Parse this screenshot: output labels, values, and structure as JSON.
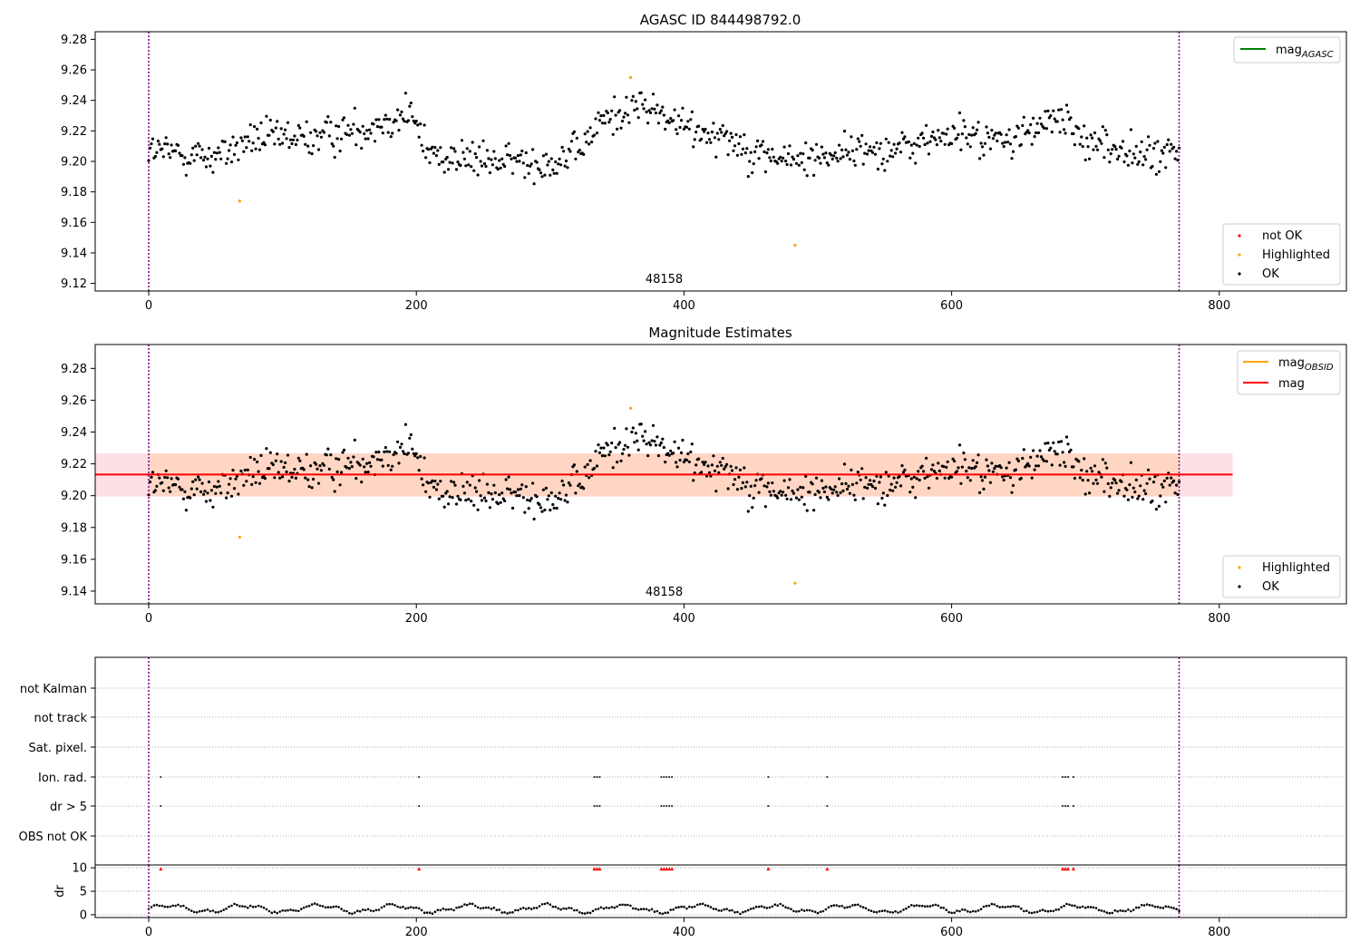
{
  "chart_data": [
    {
      "type": "scatter",
      "title": "AGASC ID 844498792.0",
      "xlabel": "",
      "ylabel": "",
      "xlim": [
        -40,
        895
      ],
      "ylim": [
        9.115,
        9.285
      ],
      "x_ticks": [
        "0",
        "200",
        "400",
        "600",
        "800"
      ],
      "y_ticks": [
        "9.12",
        "9.14",
        "9.16",
        "9.18",
        "9.20",
        "9.22",
        "9.24",
        "9.26",
        "9.28"
      ],
      "vlines": [
        0,
        770
      ],
      "annotation": {
        "text": "48158",
        "x": 385
      },
      "legend_lines": [
        {
          "name": "mag",
          "sub": "AGASC",
          "color": "#008000"
        }
      ],
      "legend_points": [
        {
          "name": "not OK",
          "color": "#ff0000"
        },
        {
          "name": "Highlighted",
          "color": "#ffa500"
        },
        {
          "name": "OK",
          "color": "#000000"
        }
      ],
      "highlighted_points": [
        [
          68,
          9.174
        ],
        [
          360,
          9.255
        ],
        [
          483,
          9.145
        ]
      ],
      "ok_points_description": "about 770 OK points, x 0 to 770, y mostly 9.18 to 9.25"
    },
    {
      "type": "scatter",
      "title": "Magnitude Estimates",
      "xlabel": "",
      "ylabel": "",
      "xlim": [
        -40,
        895
      ],
      "ylim": [
        9.132,
        9.295
      ],
      "x_ticks": [
        "0",
        "200",
        "400",
        "600",
        "800"
      ],
      "y_ticks": [
        "9.14",
        "9.16",
        "9.18",
        "9.20",
        "9.22",
        "9.24",
        "9.26",
        "9.28"
      ],
      "vlines": [
        0,
        770
      ],
      "annotation": {
        "text": "48158",
        "x": 385
      },
      "mag_line": 9.2133,
      "band_outer": {
        "x": [
          -40,
          810
        ],
        "y": [
          9.1995,
          9.2265
        ],
        "color": "#fde0e4"
      },
      "band_inner": {
        "x": [
          0,
          770
        ],
        "y": [
          9.1995,
          9.2265
        ],
        "color": "#ffd6c4"
      },
      "legend_lines": [
        {
          "name": "mag",
          "sub": "OBSID",
          "color": "#ffa500"
        },
        {
          "name": "mag",
          "sub": "",
          "color": "#ff0000"
        }
      ],
      "legend_points": [
        {
          "name": "Highlighted",
          "color": "#ffa500"
        },
        {
          "name": "OK",
          "color": "#000000"
        }
      ],
      "highlighted_points": [
        [
          68,
          9.174
        ],
        [
          360,
          9.255
        ],
        [
          483,
          9.145
        ]
      ]
    },
    {
      "type": "scatter",
      "title": "",
      "xlim": [
        -40,
        895
      ],
      "categories": [
        "not Kalman",
        "not track",
        "Sat. pixel.",
        "Ion. rad.",
        "dr > 5",
        "OBS not OK"
      ],
      "flag_x": [
        9,
        202,
        333,
        335,
        337,
        383,
        385,
        387,
        389,
        391,
        463,
        507,
        683,
        685,
        687,
        691
      ],
      "flagged_rows": [
        "Ion. rad.",
        "dr > 5"
      ],
      "vlines": [
        0,
        770
      ]
    },
    {
      "type": "scatter",
      "title": "",
      "ylabel": "dr",
      "xlim": [
        -40,
        895
      ],
      "ylim": [
        -0.6,
        10.6
      ],
      "x_ticks": [
        "0",
        "200",
        "400",
        "600",
        "800"
      ],
      "y_ticks": [
        "0",
        "5",
        "10"
      ],
      "marker_y": 9.8,
      "marker_x": [
        9,
        202,
        333,
        335,
        337,
        383,
        385,
        387,
        389,
        391,
        463,
        507,
        683,
        685,
        687,
        691
      ],
      "vlines": [
        0,
        770
      ]
    }
  ]
}
